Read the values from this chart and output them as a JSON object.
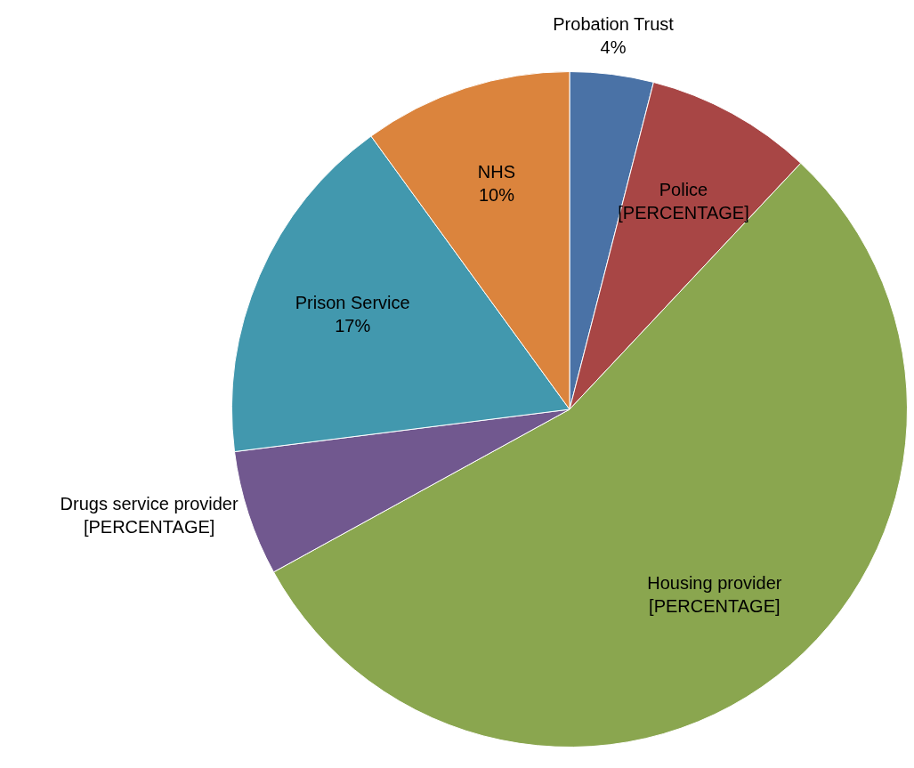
{
  "chart_data": {
    "type": "pie",
    "categories": [
      "Probation Trust",
      "Police",
      "Housing provider",
      "Drugs service provider",
      "Prison Service",
      "NHS"
    ],
    "values": [
      4,
      8,
      55,
      6,
      17,
      10
    ],
    "colors": [
      "#4a72a6",
      "#a84645",
      "#8aa64f",
      "#71588f",
      "#4298ae",
      "#db843d"
    ],
    "value_labels": [
      "4%",
      "[PERCENTAGE]",
      "[PERCENTAGE]",
      "[PERCENTAGE]",
      "17%",
      "10%"
    ]
  }
}
